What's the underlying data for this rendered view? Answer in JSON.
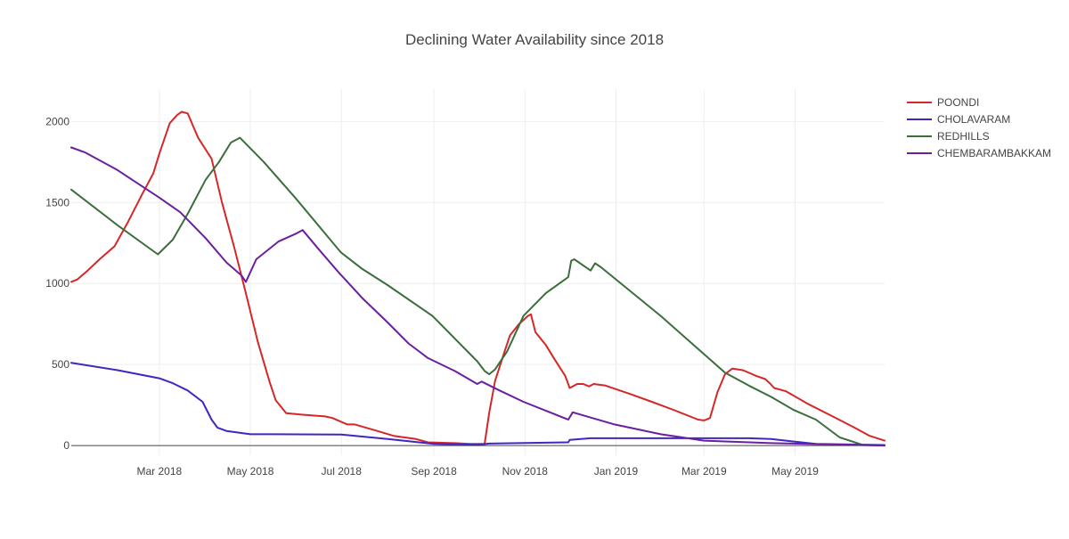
{
  "chart_data": {
    "type": "line",
    "title": "Declining Water Availability since 2018",
    "xlabel": "",
    "ylabel": "",
    "x_range": [
      "2018-01-01",
      "2019-06-30"
    ],
    "ylim": [
      -60,
      2200
    ],
    "y_ticks": [
      0,
      500,
      1000,
      1500,
      2000
    ],
    "x_ticks": [
      {
        "date": "2018-03-01",
        "label": "Mar 2018"
      },
      {
        "date": "2018-05-01",
        "label": "May 2018"
      },
      {
        "date": "2018-07-01",
        "label": "Jul 2018"
      },
      {
        "date": "2018-09-01",
        "label": "Sep 2018"
      },
      {
        "date": "2018-11-01",
        "label": "Nov 2018"
      },
      {
        "date": "2019-01-01",
        "label": "Jan 2019"
      },
      {
        "date": "2019-03-01",
        "label": "Mar 2019"
      },
      {
        "date": "2019-05-01",
        "label": "May 2019"
      }
    ],
    "grid": true,
    "legend_position": "top-right",
    "series": [
      {
        "name": "POONDI",
        "color": "#d62728",
        "points": [
          [
            "2018-01-01",
            1010
          ],
          [
            "2018-01-05",
            1025
          ],
          [
            "2018-01-12",
            1080
          ],
          [
            "2018-01-20",
            1150
          ],
          [
            "2018-01-30",
            1230
          ],
          [
            "2018-02-08",
            1380
          ],
          [
            "2018-02-18",
            1560
          ],
          [
            "2018-02-25",
            1680
          ],
          [
            "2018-03-01",
            1800
          ],
          [
            "2018-03-08",
            1990
          ],
          [
            "2018-03-13",
            2040
          ],
          [
            "2018-03-16",
            2060
          ],
          [
            "2018-03-20",
            2050
          ],
          [
            "2018-03-27",
            1900
          ],
          [
            "2018-04-05",
            1770
          ],
          [
            "2018-04-12",
            1500
          ],
          [
            "2018-04-20",
            1230
          ],
          [
            "2018-04-28",
            940
          ],
          [
            "2018-05-06",
            640
          ],
          [
            "2018-05-14",
            390
          ],
          [
            "2018-05-18",
            280
          ],
          [
            "2018-05-25",
            200
          ],
          [
            "2018-06-05",
            190
          ],
          [
            "2018-06-20",
            180
          ],
          [
            "2018-06-25",
            170
          ],
          [
            "2018-07-05",
            130
          ],
          [
            "2018-07-10",
            130
          ],
          [
            "2018-07-25",
            90
          ],
          [
            "2018-08-05",
            60
          ],
          [
            "2018-08-20",
            40
          ],
          [
            "2018-08-28",
            20
          ],
          [
            "2018-09-15",
            15
          ],
          [
            "2018-09-25",
            10
          ],
          [
            "2018-10-05",
            10
          ],
          [
            "2018-10-08",
            200
          ],
          [
            "2018-10-12",
            400
          ],
          [
            "2018-10-18",
            570
          ],
          [
            "2018-10-22",
            680
          ],
          [
            "2018-10-28",
            750
          ],
          [
            "2018-11-03",
            800
          ],
          [
            "2018-11-05",
            810
          ],
          [
            "2018-11-08",
            700
          ],
          [
            "2018-11-15",
            620
          ],
          [
            "2018-11-21",
            530
          ],
          [
            "2018-11-28",
            430
          ],
          [
            "2018-12-01",
            355
          ],
          [
            "2018-12-06",
            380
          ],
          [
            "2018-12-10",
            380
          ],
          [
            "2018-12-14",
            365
          ],
          [
            "2018-12-17",
            380
          ],
          [
            "2018-12-25",
            370
          ],
          [
            "2019-01-10",
            320
          ],
          [
            "2019-01-25",
            270
          ],
          [
            "2019-02-10",
            215
          ],
          [
            "2019-02-25",
            160
          ],
          [
            "2019-03-01",
            155
          ],
          [
            "2019-03-05",
            170
          ],
          [
            "2019-03-10",
            330
          ],
          [
            "2019-03-15",
            440
          ],
          [
            "2019-03-20",
            475
          ],
          [
            "2019-03-27",
            465
          ],
          [
            "2019-04-05",
            430
          ],
          [
            "2019-04-11",
            410
          ],
          [
            "2019-04-14",
            385
          ],
          [
            "2019-04-17",
            355
          ],
          [
            "2019-04-25",
            335
          ],
          [
            "2019-05-10",
            255
          ],
          [
            "2019-05-25",
            185
          ],
          [
            "2019-06-10",
            110
          ],
          [
            "2019-06-20",
            60
          ],
          [
            "2019-06-30",
            30
          ]
        ]
      },
      {
        "name": "CHOLAVARAM",
        "color": "#3f27c4",
        "points": [
          [
            "2018-01-01",
            510
          ],
          [
            "2018-02-01",
            465
          ],
          [
            "2018-03-01",
            415
          ],
          [
            "2018-03-10",
            385
          ],
          [
            "2018-03-20",
            340
          ],
          [
            "2018-03-30",
            270
          ],
          [
            "2018-04-05",
            160
          ],
          [
            "2018-04-09",
            110
          ],
          [
            "2018-04-15",
            90
          ],
          [
            "2018-05-01",
            70
          ],
          [
            "2018-05-15",
            70
          ],
          [
            "2018-07-01",
            68
          ],
          [
            "2018-08-01",
            40
          ],
          [
            "2018-09-01",
            10
          ],
          [
            "2018-10-01",
            5
          ],
          [
            "2018-10-08",
            12
          ],
          [
            "2018-11-30",
            20
          ],
          [
            "2018-12-01",
            35
          ],
          [
            "2018-12-15",
            45
          ],
          [
            "2019-03-31",
            45
          ],
          [
            "2019-04-15",
            40
          ],
          [
            "2019-05-15",
            10
          ],
          [
            "2019-06-30",
            3
          ]
        ]
      },
      {
        "name": "REDHILLS",
        "color": "#3b6e3b",
        "points": [
          [
            "2018-01-01",
            1580
          ],
          [
            "2018-02-01",
            1360
          ],
          [
            "2018-02-28",
            1180
          ],
          [
            "2018-03-10",
            1270
          ],
          [
            "2018-03-20",
            1430
          ],
          [
            "2018-04-01",
            1640
          ],
          [
            "2018-04-10",
            1750
          ],
          [
            "2018-04-18",
            1870
          ],
          [
            "2018-04-24",
            1900
          ],
          [
            "2018-05-10",
            1750
          ],
          [
            "2018-05-31",
            1530
          ],
          [
            "2018-06-30",
            1200
          ],
          [
            "2018-07-01",
            1190
          ],
          [
            "2018-07-15",
            1090
          ],
          [
            "2018-08-01",
            990
          ],
          [
            "2018-08-31",
            800
          ],
          [
            "2018-09-30",
            520
          ],
          [
            "2018-10-05",
            460
          ],
          [
            "2018-10-08",
            440
          ],
          [
            "2018-10-12",
            470
          ],
          [
            "2018-10-20",
            580
          ],
          [
            "2018-10-31",
            800
          ],
          [
            "2018-11-15",
            940
          ],
          [
            "2018-11-30",
            1040
          ],
          [
            "2018-12-02",
            1140
          ],
          [
            "2018-12-04",
            1150
          ],
          [
            "2018-12-15",
            1080
          ],
          [
            "2018-12-18",
            1125
          ],
          [
            "2018-12-22",
            1100
          ],
          [
            "2019-01-31",
            800
          ],
          [
            "2019-03-15",
            450
          ],
          [
            "2019-03-31",
            370
          ],
          [
            "2019-04-15",
            300
          ],
          [
            "2019-04-30",
            220
          ],
          [
            "2019-05-15",
            160
          ],
          [
            "2019-05-31",
            50
          ],
          [
            "2019-06-15",
            5
          ],
          [
            "2019-06-30",
            0
          ]
        ]
      },
      {
        "name": "CHEMBARAMBAKKAM",
        "color": "#6a1fa0",
        "points": [
          [
            "2018-01-01",
            1840
          ],
          [
            "2018-01-10",
            1810
          ],
          [
            "2018-02-01",
            1700
          ],
          [
            "2018-03-01",
            1530
          ],
          [
            "2018-03-15",
            1440
          ],
          [
            "2018-04-01",
            1280
          ],
          [
            "2018-04-15",
            1130
          ],
          [
            "2018-04-25",
            1050
          ],
          [
            "2018-04-28",
            1010
          ],
          [
            "2018-05-05",
            1150
          ],
          [
            "2018-05-20",
            1260
          ],
          [
            "2018-06-01",
            1310
          ],
          [
            "2018-06-05",
            1330
          ],
          [
            "2018-06-15",
            1220
          ],
          [
            "2018-06-30",
            1060
          ],
          [
            "2018-07-01",
            1050
          ],
          [
            "2018-07-15",
            910
          ],
          [
            "2018-08-01",
            760
          ],
          [
            "2018-08-15",
            630
          ],
          [
            "2018-08-28",
            540
          ],
          [
            "2018-09-15",
            460
          ],
          [
            "2018-09-30",
            380
          ],
          [
            "2018-10-03",
            395
          ],
          [
            "2018-10-15",
            340
          ],
          [
            "2018-10-31",
            270
          ],
          [
            "2018-11-30",
            160
          ],
          [
            "2018-12-03",
            205
          ],
          [
            "2018-12-31",
            130
          ],
          [
            "2019-01-31",
            70
          ],
          [
            "2019-03-01",
            30
          ],
          [
            "2019-04-15",
            15
          ],
          [
            "2019-06-30",
            0
          ]
        ]
      }
    ]
  }
}
